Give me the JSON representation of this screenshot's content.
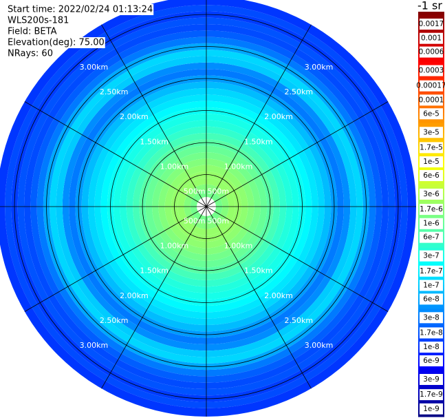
{
  "chart_data": {
    "type": "polar-heatmap",
    "header": [
      "Start time: 2022/02/24 01:13:24",
      "WLS200s-181",
      "Field: BETA",
      "Elevation(deg): 75.00",
      "NRays: 60"
    ],
    "colorbar_label": "-1 sr",
    "colormap": "jet",
    "log_scale": true,
    "clim": [
      7.5e-10,
      0.0027
    ],
    "cticks": [
      0.0017,
      0.001,
      0.0006,
      0.0003,
      0.00017,
      0.0001,
      {
        "value": 6e-05,
        "label": "6e-5"
      },
      {
        "value": 3e-05,
        "label": "3e-5"
      },
      {
        "value": 1.7e-05,
        "label": "1.7e-5"
      },
      {
        "value": 1e-05,
        "label": "1e-5"
      },
      {
        "value": 6e-06,
        "label": "6e-6"
      },
      {
        "value": 3e-06,
        "label": "3e-6"
      },
      {
        "value": 1.7e-06,
        "label": "1.7e-6"
      },
      {
        "value": 1e-06,
        "label": "1e-6"
      },
      6e-07,
      3e-07,
      1.7e-07,
      1e-07,
      6e-08,
      3e-08,
      1.7e-08,
      1e-08,
      6e-09,
      3e-09,
      1.7e-09,
      1e-09
    ],
    "rlim": [
      0,
      3.28
    ],
    "range_ticks": [
      {
        "value": 0.5,
        "label": "500m"
      },
      {
        "value": 1.0,
        "label": "1.00km"
      },
      {
        "value": 1.5,
        "label": "1.50km"
      },
      {
        "value": 2.0,
        "label": "2.00km"
      },
      {
        "value": 2.5,
        "label": "2.50km"
      },
      {
        "value": 3.0,
        "label": "3.00km"
      }
    ],
    "azimuth_ticks": [
      0,
      30,
      60,
      90,
      120,
      150,
      180,
      210,
      240,
      270,
      300,
      330
    ],
    "range_edges_km": [
      0.15,
      0.25,
      0.35,
      0.45,
      0.55,
      0.65,
      0.75,
      0.85,
      0.95,
      1.05,
      1.15,
      1.25,
      1.35,
      1.45,
      1.55,
      1.65,
      1.75,
      1.85,
      1.95,
      2.05,
      2.15,
      2.25,
      2.35,
      2.45,
      2.55,
      2.65,
      2.75,
      2.85,
      2.95,
      3.05,
      3.15,
      3.28
    ],
    "values": [
      1.2e-06,
      1.5e-06,
      2e-06,
      2e-06,
      1.8e-06,
      1.5e-06,
      1.2e-06,
      1e-06,
      8e-07,
      6e-07,
      4.5e-07,
      3.5e-07,
      3e-07,
      2.5e-07,
      2e-07,
      1.5e-07,
      1.2e-07,
      8e-08,
      5e-08,
      3e-08,
      4e-08,
      1e-07,
      1.2e-07,
      6e-08,
      3e-08,
      2e-08,
      1.5e-08,
      1.7e-08,
      1.2e-08,
      1.5e-08,
      1.1e-08
    ]
  }
}
